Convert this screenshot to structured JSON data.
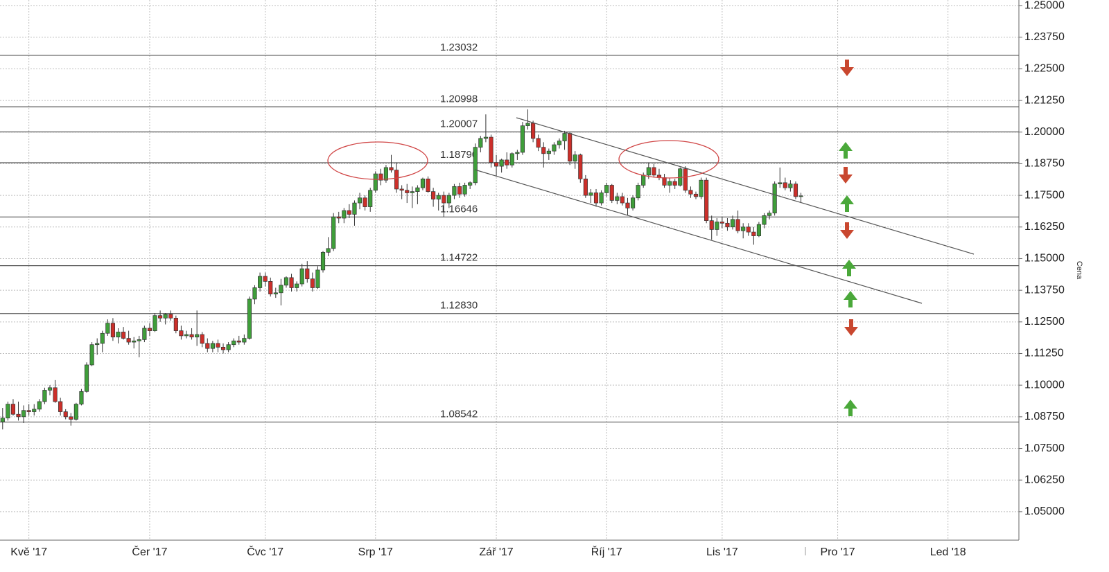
{
  "chart_data": {
    "type": "candlestick",
    "y_label": "Cena",
    "categories": [
      null,
      null,
      null,
      null,
      null,
      "Kvě '17",
      null,
      null,
      null,
      null,
      null,
      null,
      null,
      null,
      null,
      null,
      null,
      null,
      null,
      null,
      null,
      null,
      null,
      null,
      null,
      null,
      null,
      null,
      "Čer '17",
      null,
      null,
      null,
      null,
      null,
      null,
      null,
      null,
      null,
      null,
      null,
      null,
      null,
      null,
      null,
      null,
      null,
      null,
      null,
      null,
      null,
      "Čvc '17",
      null,
      null,
      null,
      null,
      null,
      null,
      null,
      null,
      null,
      null,
      null,
      null,
      null,
      null,
      null,
      null,
      null,
      null,
      null,
      null,
      "Srp '17",
      null,
      null,
      null,
      null,
      null,
      null,
      null,
      null,
      null,
      null,
      null,
      null,
      null,
      null,
      null,
      null,
      null,
      null,
      null,
      null,
      null,
      null,
      "Zář '17",
      null,
      null,
      null,
      null,
      null,
      null,
      null,
      null,
      null,
      null,
      null,
      null,
      null,
      null,
      null,
      null,
      null,
      null,
      null,
      null,
      "Říj '17",
      null,
      null,
      null,
      null,
      null,
      null,
      null,
      null,
      null,
      null,
      null,
      null,
      null,
      null,
      null,
      null,
      null,
      null,
      null,
      null,
      null,
      "Lis '17",
      null,
      null,
      null,
      null,
      null,
      null,
      null,
      null,
      null,
      null,
      null,
      null,
      null,
      null,
      null,
      null,
      null,
      null,
      null,
      null,
      null,
      "Pro '17",
      null,
      null,
      null,
      null,
      null,
      null,
      null,
      null,
      null,
      null,
      null,
      null,
      null,
      null,
      null,
      null,
      null,
      null,
      null,
      null,
      "Led '18",
      null,
      null,
      null,
      null,
      null,
      null,
      null,
      null,
      null,
      null,
      null,
      null,
      null
    ],
    "open": [
      1.0855,
      1.087,
      1.0925,
      1.0885,
      1.0875,
      1.09,
      1.0895,
      1.0905,
      1.0935,
      1.098,
      1.099,
      1.0935,
      1.0895,
      1.0875,
      1.0865,
      1.0925,
      1.0975,
      1.108,
      1.116,
      1.1165,
      1.1205,
      1.1245,
      1.119,
      1.121,
      1.1185,
      1.117,
      1.1175,
      1.118,
      1.1225,
      1.1215,
      1.1275,
      1.1265,
      1.128,
      1.1265,
      1.1215,
      1.1195,
      1.12,
      1.119,
      1.12,
      1.1165,
      1.1145,
      1.1165,
      1.115,
      1.114,
      1.116,
      1.1175,
      1.117,
      1.1185,
      1.134,
      1.1385,
      1.143,
      1.141,
      1.136,
      1.1365,
      1.1395,
      1.1425,
      1.1385,
      1.14,
      1.146,
      1.142,
      1.1385,
      1.1455,
      1.1525,
      1.154,
      1.1665,
      1.166,
      1.169,
      1.1675,
      1.172,
      1.174,
      1.1705,
      1.177,
      1.1835,
      1.181,
      1.186,
      1.185,
      1.1775,
      1.177,
      1.176,
      1.1765,
      1.178,
      1.1815,
      1.1765,
      1.1735,
      1.175,
      1.172,
      1.175,
      1.1785,
      1.1755,
      1.179,
      1.18,
      1.194,
      1.1975,
      1.198,
      1.188,
      1.1865,
      1.189,
      1.187,
      1.1915,
      1.192,
      1.2025,
      1.2035,
      1.1975,
      1.194,
      1.1915,
      1.1925,
      1.195,
      1.1965,
      1.1995,
      1.1885,
      1.191,
      1.1815,
      1.175,
      1.176,
      1.172,
      1.176,
      1.179,
      1.173,
      1.1745,
      1.172,
      1.17,
      1.174,
      1.179,
      1.183,
      1.186,
      1.183,
      1.182,
      1.179,
      1.1805,
      1.179,
      1.1855,
      1.177,
      1.1755,
      1.1745,
      1.181,
      1.165,
      1.1615,
      1.1645,
      1.164,
      1.1625,
      1.1655,
      1.161,
      1.1625,
      1.1605,
      1.159,
      1.1635,
      1.167,
      1.168,
      1.1795,
      1.18,
      1.178,
      1.1795,
      1.1745,
      null,
      null,
      null,
      null,
      null,
      null,
      null,
      null,
      null,
      null,
      null,
      null,
      null,
      null,
      null,
      null,
      null,
      null,
      null,
      null,
      null,
      null,
      null,
      null,
      null,
      null,
      null,
      null,
      null,
      null,
      null,
      null,
      null,
      null,
      null,
      null,
      null,
      null,
      null,
      null,
      null
    ],
    "high": [
      1.091,
      1.0935,
      1.0945,
      1.0935,
      1.092,
      1.0925,
      1.0925,
      1.0945,
      1.099,
      1.1,
      1.102,
      1.095,
      1.0905,
      1.089,
      1.093,
      1.0985,
      1.109,
      1.117,
      1.1185,
      1.1215,
      1.126,
      1.1265,
      1.1225,
      1.123,
      1.1215,
      1.119,
      1.1195,
      1.1235,
      1.1245,
      1.1285,
      1.1295,
      1.1285,
      1.1295,
      1.1275,
      1.1235,
      1.1215,
      1.1225,
      1.1295,
      1.121,
      1.1185,
      1.1175,
      1.118,
      1.1165,
      1.117,
      1.1185,
      1.1195,
      1.12,
      1.135,
      1.1395,
      1.1445,
      1.1445,
      1.1425,
      1.1385,
      1.142,
      1.143,
      1.144,
      1.141,
      1.148,
      1.149,
      1.1445,
      1.147,
      1.153,
      1.1585,
      1.168,
      1.1685,
      1.17,
      1.1715,
      1.173,
      1.176,
      1.175,
      1.178,
      1.1845,
      1.1855,
      1.187,
      1.191,
      1.188,
      1.179,
      1.1795,
      1.1785,
      1.179,
      1.182,
      1.1825,
      1.178,
      1.176,
      1.1765,
      1.176,
      1.1795,
      1.18,
      1.18,
      1.1805,
      1.1955,
      1.1985,
      1.207,
      1.199,
      1.191,
      1.1895,
      1.192,
      1.192,
      1.193,
      1.204,
      1.209,
      1.2045,
      1.199,
      1.196,
      1.1935,
      1.196,
      1.1975,
      1.2005,
      1.2,
      1.1925,
      1.1915,
      1.183,
      1.1775,
      1.1775,
      1.177,
      1.18,
      1.1795,
      1.176,
      1.176,
      1.174,
      1.175,
      1.18,
      1.184,
      1.188,
      1.1875,
      1.1855,
      1.1835,
      1.182,
      1.1815,
      1.186,
      1.1865,
      1.1785,
      1.1765,
      1.182,
      1.182,
      1.167,
      1.166,
      1.1665,
      1.166,
      1.167,
      1.169,
      1.164,
      1.164,
      1.1625,
      1.1645,
      1.168,
      1.169,
      1.1805,
      1.186,
      1.182,
      1.181,
      1.1805,
      1.176,
      null,
      null,
      null,
      null,
      null,
      null,
      null,
      null,
      null,
      null,
      null,
      null,
      null,
      null,
      null,
      null,
      null,
      null,
      null,
      null,
      null,
      null,
      null,
      null,
      null,
      null,
      null,
      null,
      null,
      null,
      null,
      null,
      null,
      null,
      null,
      null,
      null,
      null,
      null,
      null,
      null
    ],
    "low": [
      1.0825,
      1.086,
      1.088,
      1.086,
      1.085,
      1.088,
      1.088,
      1.0895,
      1.0925,
      1.096,
      1.093,
      1.088,
      1.0865,
      1.084,
      1.086,
      1.092,
      1.097,
      1.1075,
      1.112,
      1.113,
      1.1195,
      1.1175,
      1.1165,
      1.118,
      1.116,
      1.1145,
      1.111,
      1.117,
      1.1195,
      1.121,
      1.125,
      1.124,
      1.1255,
      1.1205,
      1.118,
      1.1185,
      1.118,
      1.1155,
      1.115,
      1.113,
      1.113,
      1.113,
      1.1125,
      1.113,
      1.115,
      1.116,
      1.116,
      1.118,
      1.132,
      1.137,
      1.139,
      1.135,
      1.1345,
      1.1315,
      1.1385,
      1.137,
      1.137,
      1.139,
      1.1405,
      1.137,
      1.138,
      1.1445,
      1.151,
      1.153,
      1.164,
      1.164,
      1.166,
      1.163,
      1.1695,
      1.169,
      1.1685,
      1.176,
      1.179,
      1.18,
      1.184,
      1.176,
      1.1735,
      1.172,
      1.17,
      1.1715,
      1.177,
      1.176,
      1.1705,
      1.169,
      1.1665,
      1.17,
      1.1735,
      1.174,
      1.1745,
      1.1775,
      1.179,
      1.192,
      1.196,
      1.186,
      1.1825,
      1.184,
      1.1855,
      1.186,
      1.189,
      1.191,
      1.201,
      1.196,
      1.1925,
      1.186,
      1.189,
      1.191,
      1.1935,
      1.193,
      1.187,
      1.1855,
      1.18,
      1.174,
      1.172,
      1.1705,
      1.171,
      1.1745,
      1.172,
      1.1715,
      1.171,
      1.167,
      1.169,
      1.173,
      1.178,
      1.1815,
      1.182,
      1.181,
      1.178,
      1.176,
      1.1775,
      1.1785,
      1.176,
      1.174,
      1.1735,
      1.1735,
      1.164,
      1.1575,
      1.159,
      1.162,
      1.161,
      1.1615,
      1.16,
      1.158,
      1.159,
      1.1555,
      1.1585,
      1.162,
      1.1655,
      1.167,
      1.178,
      1.177,
      1.1765,
      1.1735,
      1.172,
      null,
      null,
      null,
      null,
      null,
      null,
      null,
      null,
      null,
      null,
      null,
      null,
      null,
      null,
      null,
      null,
      null,
      null,
      null,
      null,
      null,
      null,
      null,
      null,
      null,
      null,
      null,
      null,
      null,
      null,
      null,
      null,
      null,
      null,
      null,
      null,
      null,
      null,
      null,
      null,
      null
    ],
    "close": [
      1.087,
      1.0925,
      1.0885,
      1.0875,
      1.09,
      1.0895,
      1.0905,
      1.0935,
      1.098,
      1.099,
      1.0935,
      1.0895,
      1.0875,
      1.0865,
      1.0925,
      1.0975,
      1.108,
      1.116,
      1.1165,
      1.1205,
      1.1245,
      1.119,
      1.121,
      1.1185,
      1.117,
      1.1175,
      1.118,
      1.1225,
      1.1215,
      1.1275,
      1.1265,
      1.128,
      1.1265,
      1.1215,
      1.1195,
      1.12,
      1.119,
      1.12,
      1.1165,
      1.1145,
      1.1165,
      1.115,
      1.114,
      1.116,
      1.1175,
      1.117,
      1.1185,
      1.134,
      1.1385,
      1.143,
      1.141,
      1.136,
      1.1365,
      1.1395,
      1.1425,
      1.1385,
      1.14,
      1.146,
      1.142,
      1.1385,
      1.1455,
      1.1525,
      1.154,
      1.1665,
      1.166,
      1.169,
      1.1675,
      1.172,
      1.174,
      1.1705,
      1.177,
      1.1835,
      1.181,
      1.186,
      1.185,
      1.1775,
      1.177,
      1.176,
      1.1765,
      1.178,
      1.1815,
      1.1765,
      1.1735,
      1.175,
      1.172,
      1.175,
      1.1785,
      1.1755,
      1.179,
      1.18,
      1.194,
      1.1975,
      1.198,
      1.188,
      1.1865,
      1.189,
      1.187,
      1.1915,
      1.192,
      1.2025,
      1.2035,
      1.1975,
      1.194,
      1.1915,
      1.1925,
      1.195,
      1.1965,
      1.1995,
      1.1885,
      1.191,
      1.1815,
      1.175,
      1.176,
      1.172,
      1.176,
      1.179,
      1.173,
      1.1745,
      1.172,
      1.17,
      1.174,
      1.179,
      1.183,
      1.186,
      1.183,
      1.182,
      1.179,
      1.1805,
      1.179,
      1.1855,
      1.177,
      1.1755,
      1.1745,
      1.181,
      1.165,
      1.1615,
      1.1645,
      1.164,
      1.1625,
      1.1655,
      1.161,
      1.1625,
      1.1605,
      1.159,
      1.1635,
      1.167,
      1.168,
      1.1795,
      1.18,
      1.178,
      1.1795,
      1.1745,
      1.1748,
      null,
      null,
      null,
      null,
      null,
      null,
      null,
      null,
      null,
      null,
      null,
      null,
      null,
      null,
      null,
      null,
      null,
      null,
      null,
      null,
      null,
      null,
      null,
      null,
      null,
      null,
      null,
      null,
      null,
      null,
      null,
      null,
      null,
      null,
      null,
      null,
      null,
      null,
      null,
      null,
      null
    ],
    "up_color": "#3f9e3a",
    "down_color": "#cc2f2a",
    "ylim": [
      1.03875,
      1.2522
    ],
    "yticks": [
      {
        "value": 1.05,
        "label": "1.05000"
      },
      {
        "value": 1.0625,
        "label": "1.06250"
      },
      {
        "value": 1.075,
        "label": "1.07500"
      },
      {
        "value": 1.0875,
        "label": "1.08750"
      },
      {
        "value": 1.1,
        "label": "1.10000"
      },
      {
        "value": 1.1125,
        "label": "1.11250"
      },
      {
        "value": 1.125,
        "label": "1.12500"
      },
      {
        "value": 1.1375,
        "label": "1.13750"
      },
      {
        "value": 1.15,
        "label": "1.15000"
      },
      {
        "value": 1.1625,
        "label": "1.16250"
      },
      {
        "value": 1.175,
        "label": "1.17500"
      },
      {
        "value": 1.1875,
        "label": "1.18750"
      },
      {
        "value": 1.2,
        "label": "1.20000"
      },
      {
        "value": 1.2125,
        "label": "1.21250"
      },
      {
        "value": 1.225,
        "label": "1.22500"
      },
      {
        "value": 1.2375,
        "label": "1.23750"
      },
      {
        "value": 1.25,
        "label": "1.25000"
      }
    ],
    "levels": [
      1.23032,
      1.20998,
      1.20007,
      {
        "value": 1.1879,
        "label": "1.18790"
      },
      1.16646,
      1.14722,
      {
        "value": 1.1283,
        "label": "1.12830"
      },
      1.08542
    ],
    "grid": true
  }
}
